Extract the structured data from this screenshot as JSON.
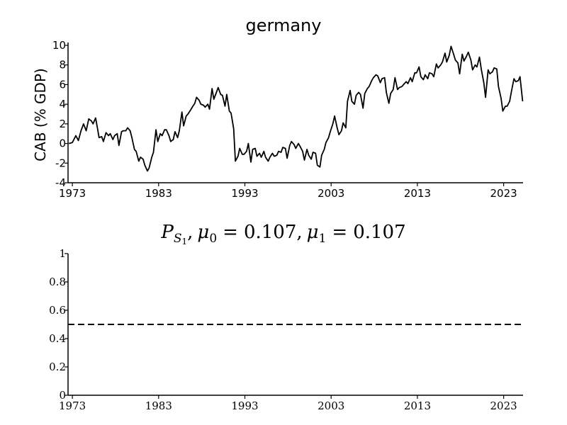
{
  "chart_data": [
    {
      "type": "line",
      "title": "germany",
      "xlabel": "",
      "ylabel": "CAB (% GDP)",
      "xlim": [
        1972.5,
        2025.25
      ],
      "ylim": [
        -4,
        10
      ],
      "xticks": [
        1973,
        1983,
        1993,
        2003,
        2013,
        2023
      ],
      "xtick_labels": [
        "1973",
        "1983",
        "1993",
        "2003",
        "2013",
        "2023"
      ],
      "yticks": [
        -4,
        -2,
        0,
        2,
        4,
        6,
        8,
        10
      ],
      "ytick_labels": [
        "-4",
        "-2",
        "0",
        "2",
        "4",
        "6",
        "8",
        "10"
      ],
      "grid": false,
      "series": [
        {
          "color": "#000000",
          "points": [
            [
              1972.6,
              0.0
            ],
            [
              1973.0,
              0.1
            ],
            [
              1973.4,
              0.8
            ],
            [
              1973.7,
              0.3
            ],
            [
              1974.0,
              1.3
            ],
            [
              1974.3,
              2.0
            ],
            [
              1974.6,
              1.3
            ],
            [
              1974.9,
              2.5
            ],
            [
              1975.2,
              2.3
            ],
            [
              1975.4,
              2.0
            ],
            [
              1975.7,
              2.6
            ],
            [
              1975.9,
              1.6
            ],
            [
              1976.1,
              0.6
            ],
            [
              1976.4,
              0.7
            ],
            [
              1976.6,
              0.2
            ],
            [
              1976.9,
              1.1
            ],
            [
              1977.2,
              0.8
            ],
            [
              1977.4,
              1.0
            ],
            [
              1977.7,
              0.4
            ],
            [
              1977.9,
              0.8
            ],
            [
              1978.2,
              1.0
            ],
            [
              1978.4,
              -0.2
            ],
            [
              1978.7,
              1.2
            ],
            [
              1978.9,
              1.3
            ],
            [
              1979.2,
              1.3
            ],
            [
              1979.4,
              1.6
            ],
            [
              1979.7,
              1.3
            ],
            [
              1979.9,
              0.6
            ],
            [
              1980.2,
              -0.6
            ],
            [
              1980.4,
              -0.8
            ],
            [
              1980.7,
              -1.8
            ],
            [
              1980.9,
              -1.4
            ],
            [
              1981.2,
              -1.6
            ],
            [
              1981.4,
              -2.2
            ],
            [
              1981.7,
              -2.8
            ],
            [
              1981.9,
              -2.5
            ],
            [
              1982.2,
              -1.4
            ],
            [
              1982.4,
              -0.9
            ],
            [
              1982.7,
              1.4
            ],
            [
              1982.9,
              0.2
            ],
            [
              1983.2,
              1.0
            ],
            [
              1983.4,
              0.8
            ],
            [
              1983.7,
              1.4
            ],
            [
              1983.9,
              1.4
            ],
            [
              1984.2,
              0.8
            ],
            [
              1984.4,
              0.2
            ],
            [
              1984.7,
              0.4
            ],
            [
              1984.9,
              1.2
            ],
            [
              1985.2,
              0.6
            ],
            [
              1985.4,
              1.3
            ],
            [
              1985.7,
              3.2
            ],
            [
              1985.9,
              1.8
            ],
            [
              1986.2,
              2.8
            ],
            [
              1986.4,
              3.0
            ],
            [
              1986.7,
              3.4
            ],
            [
              1986.9,
              3.7
            ],
            [
              1987.2,
              4.1
            ],
            [
              1987.4,
              4.7
            ],
            [
              1987.7,
              4.4
            ],
            [
              1987.9,
              4.0
            ],
            [
              1988.2,
              3.9
            ],
            [
              1988.4,
              3.7
            ],
            [
              1988.7,
              4.0
            ],
            [
              1988.9,
              3.5
            ],
            [
              1989.2,
              5.6
            ],
            [
              1989.4,
              4.5
            ],
            [
              1989.7,
              5.2
            ],
            [
              1989.9,
              5.7
            ],
            [
              1990.2,
              5.0
            ],
            [
              1990.4,
              4.9
            ],
            [
              1990.7,
              3.8
            ],
            [
              1990.9,
              5.0
            ],
            [
              1991.2,
              3.3
            ],
            [
              1991.4,
              3.1
            ],
            [
              1991.7,
              1.5
            ],
            [
              1991.9,
              -1.8
            ],
            [
              1992.2,
              -1.3
            ],
            [
              1992.4,
              -0.5
            ],
            [
              1992.7,
              -1.1
            ],
            [
              1992.9,
              -1.1
            ],
            [
              1993.2,
              -0.8
            ],
            [
              1993.4,
              0.0
            ],
            [
              1993.7,
              -1.9
            ],
            [
              1993.9,
              -0.6
            ],
            [
              1994.2,
              -0.5
            ],
            [
              1994.4,
              -1.3
            ],
            [
              1994.7,
              -1.0
            ],
            [
              1994.9,
              -1.4
            ],
            [
              1995.2,
              -0.8
            ],
            [
              1995.4,
              -1.4
            ],
            [
              1995.7,
              -1.8
            ],
            [
              1995.9,
              -1.4
            ],
            [
              1996.2,
              -1.0
            ],
            [
              1996.4,
              -1.3
            ],
            [
              1996.7,
              -1.2
            ],
            [
              1996.9,
              -0.8
            ],
            [
              1997.2,
              -0.9
            ],
            [
              1997.4,
              -0.4
            ],
            [
              1997.7,
              -0.5
            ],
            [
              1997.9,
              -1.5
            ],
            [
              1998.2,
              -0.2
            ],
            [
              1998.4,
              0.2
            ],
            [
              1998.7,
              -0.1
            ],
            [
              1998.9,
              -0.5
            ],
            [
              1999.2,
              0.0
            ],
            [
              1999.4,
              -0.3
            ],
            [
              1999.7,
              -0.8
            ],
            [
              1999.9,
              -1.7
            ],
            [
              2000.2,
              -0.6
            ],
            [
              2000.4,
              -1.2
            ],
            [
              2000.7,
              -1.6
            ],
            [
              2000.9,
              -0.9
            ],
            [
              2001.2,
              -1.0
            ],
            [
              2001.4,
              -2.2
            ],
            [
              2001.7,
              -2.4
            ],
            [
              2001.9,
              -1.2
            ],
            [
              2002.2,
              -0.6
            ],
            [
              2002.4,
              0.1
            ],
            [
              2002.7,
              0.6
            ],
            [
              2002.9,
              1.2
            ],
            [
              2003.2,
              2.0
            ],
            [
              2003.4,
              2.8
            ],
            [
              2003.7,
              1.6
            ],
            [
              2003.9,
              0.9
            ],
            [
              2004.2,
              1.3
            ],
            [
              2004.4,
              2.1
            ],
            [
              2004.7,
              1.6
            ],
            [
              2004.9,
              4.3
            ],
            [
              2005.2,
              5.4
            ],
            [
              2005.4,
              4.3
            ],
            [
              2005.7,
              4.0
            ],
            [
              2005.9,
              4.9
            ],
            [
              2006.2,
              5.2
            ],
            [
              2006.4,
              5.0
            ],
            [
              2006.7,
              3.6
            ],
            [
              2006.9,
              5.1
            ],
            [
              2007.2,
              5.6
            ],
            [
              2007.4,
              5.8
            ],
            [
              2007.7,
              6.4
            ],
            [
              2007.9,
              6.7
            ],
            [
              2008.2,
              7.0
            ],
            [
              2008.4,
              6.9
            ],
            [
              2008.7,
              6.2
            ],
            [
              2008.9,
              6.6
            ],
            [
              2009.2,
              6.7
            ],
            [
              2009.4,
              5.2
            ],
            [
              2009.7,
              4.1
            ],
            [
              2009.9,
              5.1
            ],
            [
              2010.2,
              5.5
            ],
            [
              2010.4,
              6.7
            ],
            [
              2010.7,
              5.5
            ],
            [
              2010.9,
              5.7
            ],
            [
              2011.2,
              5.8
            ],
            [
              2011.4,
              6.0
            ],
            [
              2011.7,
              6.3
            ],
            [
              2011.9,
              6.1
            ],
            [
              2012.2,
              6.7
            ],
            [
              2012.4,
              6.3
            ],
            [
              2012.7,
              7.2
            ],
            [
              2012.9,
              7.2
            ],
            [
              2013.2,
              7.8
            ],
            [
              2013.4,
              6.8
            ],
            [
              2013.7,
              6.5
            ],
            [
              2013.9,
              7.0
            ],
            [
              2014.2,
              6.6
            ],
            [
              2014.4,
              7.2
            ],
            [
              2014.7,
              7.1
            ],
            [
              2014.9,
              6.8
            ],
            [
              2015.2,
              8.1
            ],
            [
              2015.4,
              7.7
            ],
            [
              2015.7,
              8.0
            ],
            [
              2015.9,
              8.3
            ],
            [
              2016.2,
              9.2
            ],
            [
              2016.4,
              8.3
            ],
            [
              2016.7,
              9.0
            ],
            [
              2016.9,
              9.9
            ],
            [
              2017.2,
              9.1
            ],
            [
              2017.4,
              8.5
            ],
            [
              2017.7,
              8.2
            ],
            [
              2017.9,
              7.1
            ],
            [
              2018.2,
              9.1
            ],
            [
              2018.4,
              8.4
            ],
            [
              2018.7,
              8.9
            ],
            [
              2018.9,
              9.3
            ],
            [
              2019.2,
              8.5
            ],
            [
              2019.4,
              7.5
            ],
            [
              2019.7,
              8.0
            ],
            [
              2019.9,
              7.8
            ],
            [
              2020.2,
              8.8
            ],
            [
              2020.4,
              7.6
            ],
            [
              2020.7,
              6.2
            ],
            [
              2020.9,
              4.7
            ],
            [
              2021.2,
              7.5
            ],
            [
              2021.4,
              7.1
            ],
            [
              2021.7,
              7.3
            ],
            [
              2021.9,
              7.7
            ],
            [
              2022.2,
              7.6
            ],
            [
              2022.4,
              5.8
            ],
            [
              2022.7,
              4.6
            ],
            [
              2022.9,
              3.3
            ],
            [
              2023.2,
              3.8
            ],
            [
              2023.4,
              3.8
            ],
            [
              2023.7,
              4.3
            ],
            [
              2023.9,
              5.3
            ],
            [
              2024.2,
              6.6
            ],
            [
              2024.4,
              6.3
            ],
            [
              2024.7,
              6.4
            ],
            [
              2024.9,
              6.8
            ],
            [
              2025.2,
              4.3
            ]
          ]
        }
      ]
    },
    {
      "type": "line",
      "title": "P_{S_1}, μ_0 = 0.107, μ_1 = 0.107",
      "title_parts": {
        "P": "P",
        "S": "S",
        "one": "1",
        "mu": "μ",
        "zero": "0",
        "eq": "=",
        "val0": "0.107",
        "comma": ",",
        "val1": "0.107"
      },
      "xlabel": "",
      "ylabel": "",
      "xlim": [
        1972.5,
        2025.25
      ],
      "ylim": [
        0,
        1
      ],
      "xticks": [
        1973,
        1983,
        1993,
        2003,
        2013,
        2023
      ],
      "xtick_labels": [
        "1973",
        "1983",
        "1993",
        "2003",
        "2013",
        "2023"
      ],
      "yticks": [
        0,
        0.2,
        0.4,
        0.6,
        0.8,
        1
      ],
      "ytick_labels": [
        "0",
        "0.2",
        "0.4",
        "0.6",
        "0.8",
        "1"
      ],
      "grid": false,
      "series": [
        {
          "style": "dashed",
          "color": "#000000",
          "points": [
            [
              1972.5,
              0.5
            ],
            [
              2025.25,
              0.5
            ]
          ]
        }
      ]
    }
  ]
}
